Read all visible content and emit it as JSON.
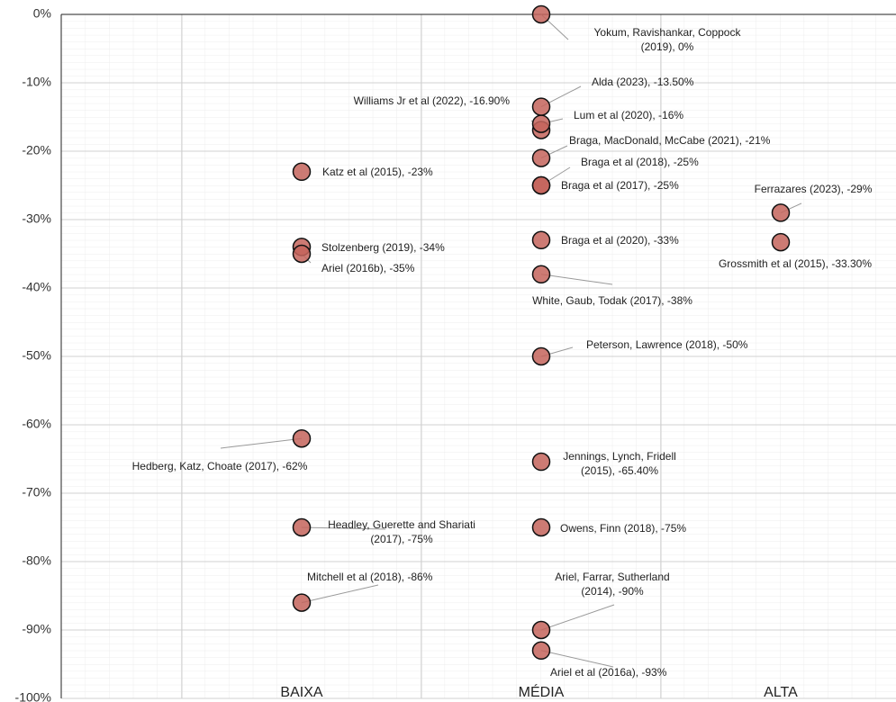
{
  "chart_data": {
    "type": "scatter",
    "ylim": [
      -100,
      0
    ],
    "yticks": [
      {
        "value": 0,
        "label": "0%"
      },
      {
        "value": -10,
        "label": "-10%"
      },
      {
        "value": -20,
        "label": "-20%"
      },
      {
        "value": -30,
        "label": "-30%"
      },
      {
        "value": -40,
        "label": "-40%"
      },
      {
        "value": -50,
        "label": "-50%"
      },
      {
        "value": -60,
        "label": "-60%"
      },
      {
        "value": -70,
        "label": "-70%"
      },
      {
        "value": -80,
        "label": "-80%"
      },
      {
        "value": -90,
        "label": "-90%"
      },
      {
        "value": -100,
        "label": "-100%"
      }
    ],
    "grid": true,
    "color": "#c4645c",
    "groups": [
      {
        "category": "BAIXA",
        "values": [
          -23,
          -34,
          -35,
          -62,
          -75,
          -86
        ],
        "value_labels": [
          "Katz et al (2015), -23%",
          "Stolzenberg (2019), -34%",
          "Ariel (2016b), -35%",
          "Hedberg, Katz, Choate (2017), -62%",
          "Headley, Guerette and Shariati\n(2017), -75%",
          "Mitchell et al (2018), -86%"
        ]
      },
      {
        "category": "MÉDIA",
        "values": [
          0,
          -13.5,
          -16.9,
          -16,
          -21,
          -25,
          -25,
          -33,
          -38,
          -50,
          -65.4,
          -75,
          -90,
          -93
        ],
        "value_labels": [
          "Yokum, Ravishankar, Coppock\n(2019), 0%",
          "Alda (2023), -13.50%",
          "Williams Jr et al (2022), -16.90%",
          "Lum et al (2020), -16%",
          "Braga, MacDonald, McCabe (2021), -21%",
          "Braga et al (2018), -25%",
          "Braga et al (2017), -25%",
          "Braga et al (2020), -33%",
          "White, Gaub, Todak (2017), -38%",
          "Peterson, Lawrence (2018), -50%",
          "Jennings, Lynch, Fridell\n(2015), -65.40%",
          "Owens, Finn (2018), -75%",
          "Ariel, Farrar, Sutherland\n(2014), -90%",
          "Ariel et al (2016a), -93%"
        ]
      },
      {
        "category": "ALTA",
        "values": [
          -29,
          -33.3
        ],
        "value_labels": [
          "Ferrazares (2023), -29%",
          "Grossmith et al (2015), -33.30%"
        ]
      }
    ]
  }
}
